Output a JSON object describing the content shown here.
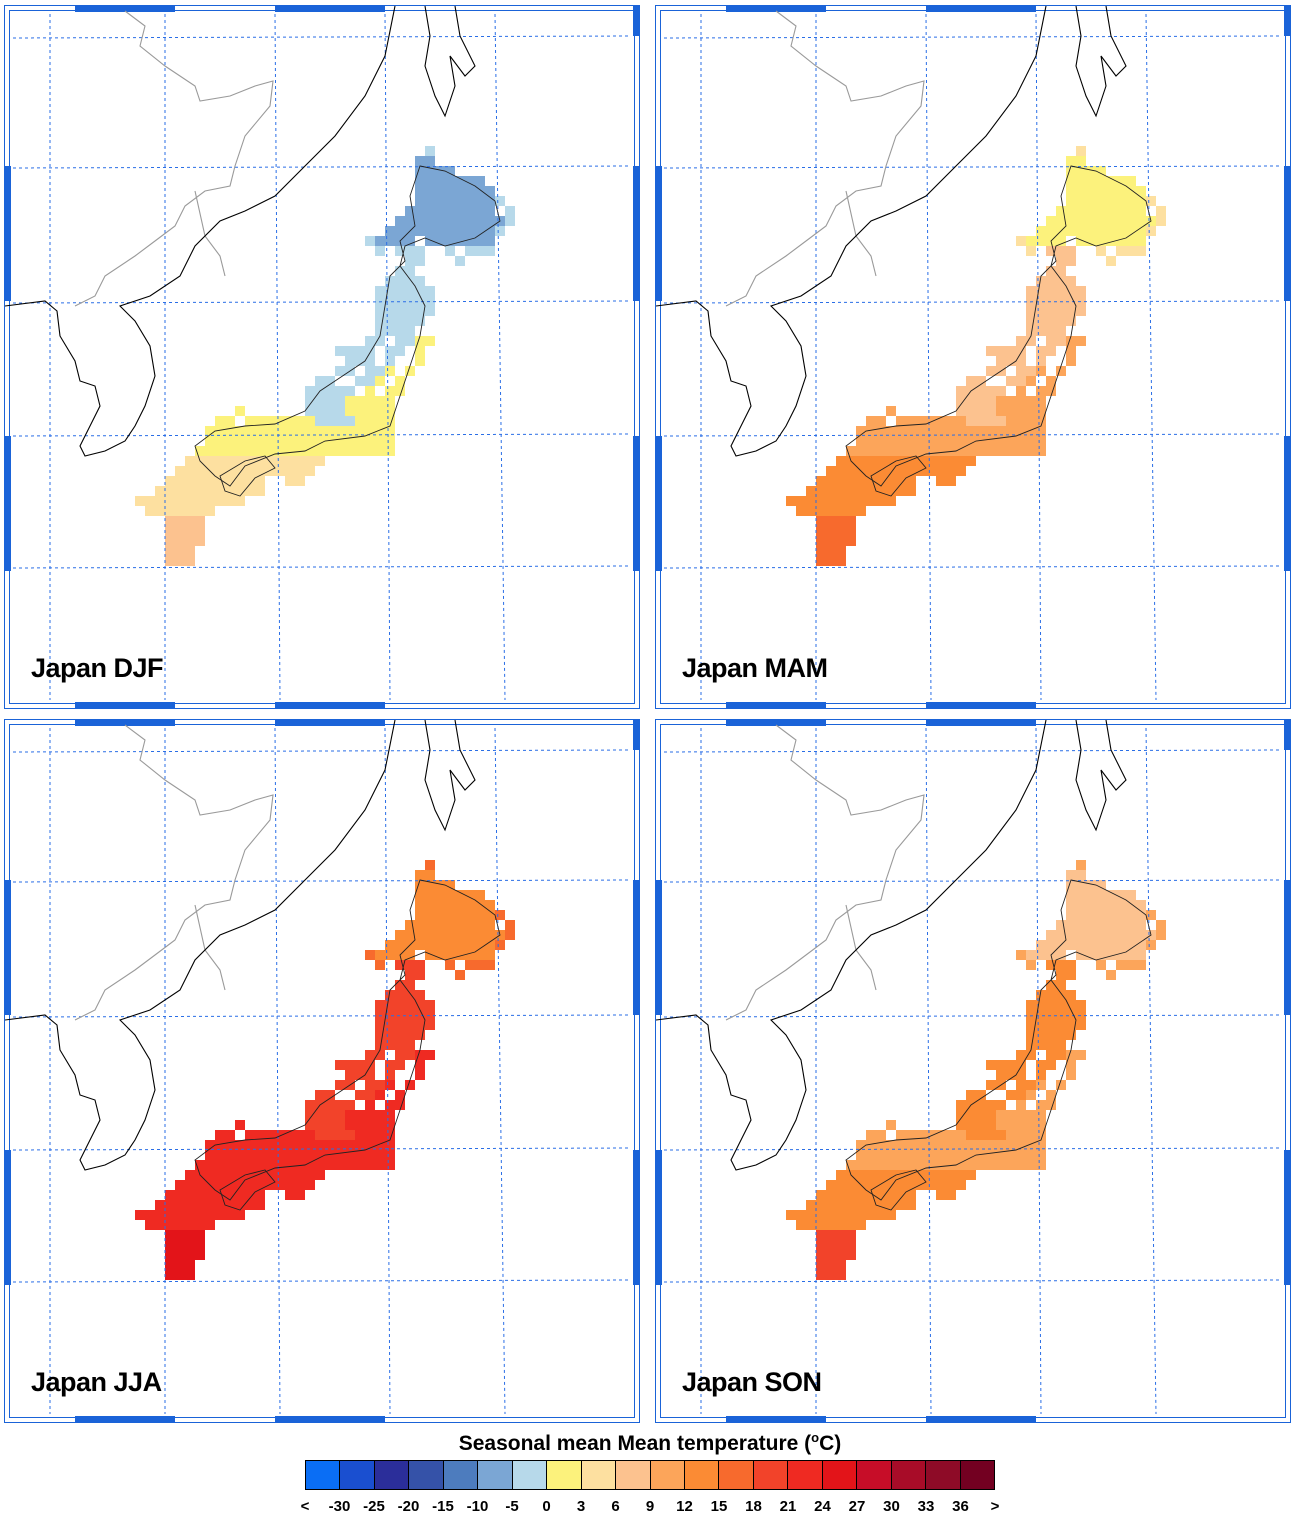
{
  "panels": [
    {
      "label": "Japan DJF",
      "season": "DJF"
    },
    {
      "label": "Japan MAM",
      "season": "MAM"
    },
    {
      "label": "Japan JJA",
      "season": "JJA"
    },
    {
      "label": "Japan SON",
      "season": "SON"
    }
  ],
  "legend": {
    "title_main": "Seasonal mean Mean temperature (",
    "title_sup": "o",
    "title_unit": "C)",
    "colors": [
      "#0a6ef5",
      "#1a4fd0",
      "#2b2e9a",
      "#3552a8",
      "#4d7cbe",
      "#7ba6d4",
      "#b7d9ea",
      "#fcf27c",
      "#fde0a0",
      "#fcc28f",
      "#fca55a",
      "#fb8b34",
      "#f76a2d",
      "#f2432a",
      "#ef2a22",
      "#e31419",
      "#c70d28",
      "#a80c28",
      "#8e0b27",
      "#730021"
    ],
    "tick_labels": [
      "<",
      "-30",
      "-25",
      "-20",
      "-15",
      "-10",
      "-5",
      "0",
      "3",
      "6",
      "9",
      "12",
      "15",
      "18",
      "21",
      "24",
      "27",
      "30",
      "33",
      "36",
      ">"
    ]
  },
  "seasonal_colors": {
    "DJF": {
      "north": "#7ba6d4",
      "north2": "#b7d9ea",
      "mid": "#b7d9ea",
      "center": "#fcf27c",
      "west": "#fde0a0",
      "south": "#fcc28f"
    },
    "MAM": {
      "north": "#fcf27c",
      "north2": "#fde0a0",
      "mid": "#fcc28f",
      "center": "#fca55a",
      "west": "#fb8b34",
      "south": "#f76a2d"
    },
    "JJA": {
      "north": "#fb8b34",
      "north2": "#f76a2d",
      "mid": "#f2432a",
      "center": "#ef2a22",
      "west": "#ef2a22",
      "south": "#e31419"
    },
    "SON": {
      "north": "#fcc28f",
      "north2": "#fca55a",
      "mid": "#fb8b34",
      "center": "#fca55a",
      "west": "#fb8b34",
      "south": "#f2432a"
    }
  }
}
